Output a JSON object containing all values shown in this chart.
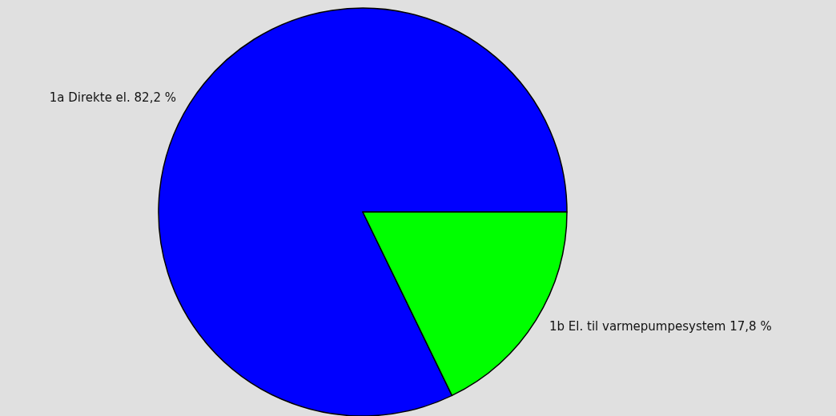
{
  "chart_data": {
    "type": "pie",
    "categories": [
      "1a Direkte el.",
      "1b El. til varmepumpesystem"
    ],
    "values": [
      82.2,
      17.8
    ],
    "value_labels": [
      "82,2 %",
      "17,8 %"
    ],
    "colors": [
      "#0000ff",
      "#00ff00"
    ],
    "legend": false
  }
}
